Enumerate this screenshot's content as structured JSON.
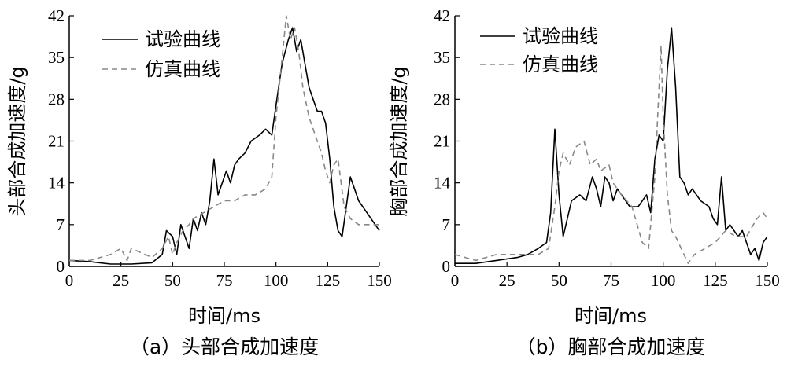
{
  "chart_data": [
    {
      "type": "line",
      "caption": "（a）头部合成加速度",
      "xlabel": "时间/ms",
      "ylabel": "头部合成加速度/g",
      "xlim": [
        0,
        150
      ],
      "ylim": [
        0,
        42
      ],
      "xticks": [
        "0",
        "25",
        "50",
        "75",
        "100",
        "125",
        "150"
      ],
      "yticks": [
        "0",
        "7",
        "14",
        "21",
        "28",
        "35",
        "42"
      ],
      "legend_position": "top-left",
      "series": [
        {
          "name": "试验曲线",
          "style": "solid",
          "points": [
            [
              0,
              1
            ],
            [
              10,
              0.8
            ],
            [
              20,
              0.4
            ],
            [
              30,
              0.4
            ],
            [
              40,
              0.6
            ],
            [
              45,
              2
            ],
            [
              47,
              6
            ],
            [
              50,
              5
            ],
            [
              52,
              2
            ],
            [
              54,
              7
            ],
            [
              56,
              5
            ],
            [
              58,
              3
            ],
            [
              60,
              8
            ],
            [
              62,
              6
            ],
            [
              64,
              9
            ],
            [
              66,
              7
            ],
            [
              68,
              11
            ],
            [
              70,
              18
            ],
            [
              72,
              12
            ],
            [
              74,
              14
            ],
            [
              76,
              16
            ],
            [
              78,
              14
            ],
            [
              80,
              17
            ],
            [
              82,
              18
            ],
            [
              85,
              19
            ],
            [
              88,
              21
            ],
            [
              92,
              22
            ],
            [
              95,
              23
            ],
            [
              98,
              22
            ],
            [
              100,
              27
            ],
            [
              103,
              34
            ],
            [
              106,
              38
            ],
            [
              108,
              40
            ],
            [
              110,
              36
            ],
            [
              112,
              38
            ],
            [
              114,
              34
            ],
            [
              116,
              30
            ],
            [
              118,
              28
            ],
            [
              120,
              26
            ],
            [
              122,
              26
            ],
            [
              124,
              24
            ],
            [
              126,
              18
            ],
            [
              128,
              10
            ],
            [
              130,
              6
            ],
            [
              132,
              5
            ],
            [
              134,
              10
            ],
            [
              136,
              15
            ],
            [
              138,
              13
            ],
            [
              140,
              11
            ],
            [
              144,
              9
            ],
            [
              148,
              7
            ],
            [
              150,
              6
            ]
          ]
        },
        {
          "name": "仿真曲线",
          "style": "dashed",
          "points": [
            [
              0,
              1
            ],
            [
              10,
              1
            ],
            [
              20,
              2
            ],
            [
              25,
              3
            ],
            [
              28,
              1
            ],
            [
              30,
              3
            ],
            [
              40,
              1.5
            ],
            [
              45,
              3
            ],
            [
              48,
              5
            ],
            [
              50,
              2
            ],
            [
              52,
              4
            ],
            [
              55,
              6
            ],
            [
              58,
              7
            ],
            [
              60,
              8
            ],
            [
              65,
              9
            ],
            [
              70,
              10
            ],
            [
              75,
              11
            ],
            [
              80,
              11
            ],
            [
              85,
              12
            ],
            [
              90,
              12
            ],
            [
              95,
              13
            ],
            [
              98,
              15
            ],
            [
              100,
              25
            ],
            [
              103,
              35
            ],
            [
              105,
              42
            ],
            [
              107,
              38
            ],
            [
              109,
              40
            ],
            [
              111,
              36
            ],
            [
              113,
              30
            ],
            [
              116,
              25
            ],
            [
              118,
              23
            ],
            [
              120,
              21
            ],
            [
              122,
              19
            ],
            [
              124,
              16
            ],
            [
              126,
              14
            ],
            [
              128,
              17
            ],
            [
              130,
              18
            ],
            [
              133,
              10
            ],
            [
              136,
              8
            ],
            [
              140,
              7
            ],
            [
              145,
              7
            ],
            [
              150,
              7
            ]
          ]
        }
      ]
    },
    {
      "type": "line",
      "caption": "（b）胸部合成加速度",
      "xlabel": "时间/ms",
      "ylabel": "胸部合成加速度/g",
      "xlim": [
        0,
        150
      ],
      "ylim": [
        0,
        42
      ],
      "xticks": [
        "0",
        "25",
        "50",
        "75",
        "100",
        "125",
        "150"
      ],
      "yticks": [
        "0",
        "7",
        "14",
        "21",
        "28",
        "35",
        "42"
      ],
      "legend_position": "top-left",
      "series": [
        {
          "name": "试验曲线",
          "style": "solid",
          "points": [
            [
              0,
              0.5
            ],
            [
              10,
              0.5
            ],
            [
              20,
              1
            ],
            [
              30,
              1.5
            ],
            [
              35,
              2
            ],
            [
              40,
              3
            ],
            [
              44,
              4
            ],
            [
              46,
              9
            ],
            [
              48,
              23
            ],
            [
              50,
              12
            ],
            [
              52,
              5
            ],
            [
              54,
              8
            ],
            [
              56,
              11
            ],
            [
              60,
              12
            ],
            [
              63,
              11
            ],
            [
              66,
              15
            ],
            [
              68,
              13
            ],
            [
              70,
              10
            ],
            [
              72,
              15
            ],
            [
              74,
              14
            ],
            [
              76,
              11
            ],
            [
              78,
              13
            ],
            [
              80,
              12
            ],
            [
              84,
              10
            ],
            [
              88,
              10
            ],
            [
              90,
              11
            ],
            [
              92,
              12
            ],
            [
              94,
              9
            ],
            [
              96,
              18
            ],
            [
              98,
              22
            ],
            [
              100,
              21
            ],
            [
              102,
              33
            ],
            [
              104,
              40
            ],
            [
              106,
              30
            ],
            [
              108,
              15
            ],
            [
              110,
              14
            ],
            [
              112,
              12
            ],
            [
              114,
              13
            ],
            [
              116,
              12
            ],
            [
              118,
              11
            ],
            [
              122,
              10
            ],
            [
              124,
              8
            ],
            [
              126,
              7
            ],
            [
              128,
              15
            ],
            [
              130,
              6
            ],
            [
              132,
              7
            ],
            [
              134,
              6
            ],
            [
              136,
              5
            ],
            [
              138,
              6
            ],
            [
              140,
              4
            ],
            [
              142,
              2
            ],
            [
              144,
              3
            ],
            [
              146,
              1
            ],
            [
              148,
              4
            ],
            [
              150,
              5
            ]
          ]
        },
        {
          "name": "仿真曲线",
          "style": "dashed",
          "points": [
            [
              0,
              2
            ],
            [
              10,
              1
            ],
            [
              20,
              2
            ],
            [
              30,
              2
            ],
            [
              40,
              2
            ],
            [
              45,
              3
            ],
            [
              48,
              10
            ],
            [
              50,
              16
            ],
            [
              52,
              19
            ],
            [
              55,
              17
            ],
            [
              58,
              20
            ],
            [
              62,
              21
            ],
            [
              65,
              17
            ],
            [
              68,
              18
            ],
            [
              70,
              16
            ],
            [
              74,
              17
            ],
            [
              76,
              14
            ],
            [
              80,
              12
            ],
            [
              85,
              10
            ],
            [
              90,
              4
            ],
            [
              93,
              3
            ],
            [
              96,
              15
            ],
            [
              98,
              30
            ],
            [
              99,
              37
            ],
            [
              100,
              25
            ],
            [
              102,
              12
            ],
            [
              104,
              6
            ],
            [
              106,
              5
            ],
            [
              110,
              2
            ],
            [
              112,
              0.5
            ],
            [
              115,
              2
            ],
            [
              120,
              3
            ],
            [
              125,
              4
            ],
            [
              130,
              6
            ],
            [
              135,
              5
            ],
            [
              140,
              5
            ],
            [
              145,
              8
            ],
            [
              148,
              9
            ],
            [
              150,
              8
            ]
          ]
        }
      ]
    }
  ]
}
